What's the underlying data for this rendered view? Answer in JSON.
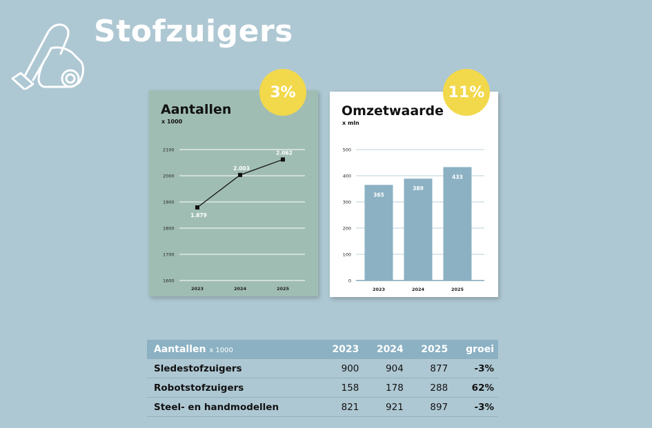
{
  "page": {
    "title": "Stofzuigers",
    "icon": "vacuum-cleaner-icon"
  },
  "colors": {
    "background": "#aec8d3",
    "card_left": "#a0bdb4",
    "card_right": "#ffffff",
    "badge": "#f2d84b",
    "bar": "#8bb1c3",
    "table_header": "#8bb1c3"
  },
  "chart_data": [
    {
      "type": "line",
      "title": "Aantallen",
      "subtitle": "x 1000",
      "badge": "3%",
      "categories": [
        "2023",
        "2024",
        "2025"
      ],
      "values": [
        1879,
        2003,
        2062
      ],
      "data_labels": [
        "1.879",
        "2.003",
        "2.062"
      ],
      "ylim": [
        1600,
        2100
      ],
      "yticks": [
        1600,
        1700,
        1800,
        1900,
        2000,
        2100
      ],
      "grid": true
    },
    {
      "type": "bar",
      "title": "Omzetwaarde",
      "subtitle": "x mln",
      "badge": "11%",
      "categories": [
        "2023",
        "2024",
        "2025"
      ],
      "values": [
        365,
        389,
        433
      ],
      "data_labels": [
        "365",
        "389",
        "433"
      ],
      "ylim": [
        0,
        500
      ],
      "yticks": [
        0,
        100,
        200,
        300,
        400,
        500
      ],
      "grid": true
    }
  ],
  "table": {
    "header": {
      "label": "Aantallen",
      "unit": "x 1000",
      "years": [
        "2023",
        "2024",
        "2025"
      ],
      "growth": "groei"
    },
    "rows": [
      {
        "label": "Sledestofzuigers",
        "values": [
          "900",
          "904",
          "877"
        ],
        "growth": "-3%"
      },
      {
        "label": "Robotstofzuigers",
        "values": [
          "158",
          "178",
          "288"
        ],
        "growth": "62%"
      },
      {
        "label": "Steel- en handmodellen",
        "values": [
          "821",
          "921",
          "897"
        ],
        "growth": "-3%"
      }
    ]
  }
}
